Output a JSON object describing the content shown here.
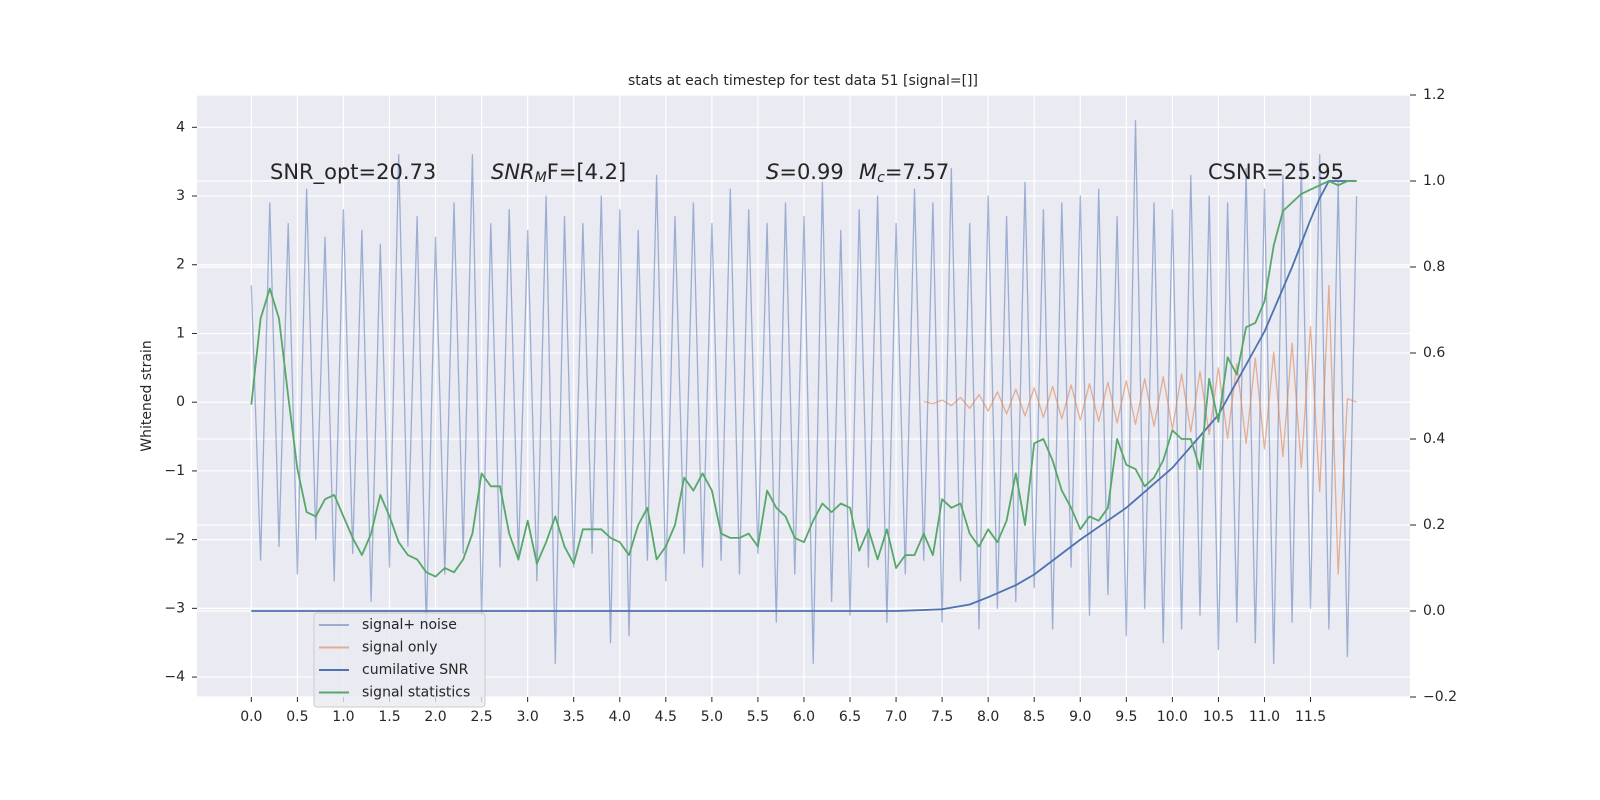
{
  "chart_data": {
    "type": "line",
    "title": "stats at each timestep for test data 51 [signal=[]]",
    "y_label": "Whitened strain",
    "grid": true,
    "legend_position": "lower left",
    "xlim": [
      -0.59,
      12.58
    ],
    "ylim": [
      -4.29,
      4.47
    ],
    "y2lim": [
      -0.2,
      1.2
    ],
    "xticks": [
      {
        "value": 0,
        "label": "0.0"
      },
      0.5,
      {
        "value": 1,
        "label": "1.0"
      },
      1.5,
      {
        "value": 2,
        "label": "2.0"
      },
      2.5,
      {
        "value": 3,
        "label": "3.0"
      },
      3.5,
      {
        "value": 4,
        "label": "4.0"
      },
      4.5,
      {
        "value": 5,
        "label": "5.0"
      },
      5.5,
      {
        "value": 6,
        "label": "6.0"
      },
      6.5,
      {
        "value": 7,
        "label": "7.0"
      },
      7.5,
      {
        "value": 8,
        "label": "8.0"
      },
      8.5,
      {
        "value": 9,
        "label": "9.0"
      },
      9.5,
      {
        "value": 10,
        "label": "10.0"
      },
      10.5,
      {
        "value": 11,
        "label": "11.0"
      },
      11.5
    ],
    "yticks": [
      {
        "value": -4,
        "label": "−4"
      },
      {
        "value": -3,
        "label": "−3"
      },
      {
        "value": -2,
        "label": "−2"
      },
      {
        "value": -1,
        "label": "−1"
      },
      0,
      1,
      2,
      3,
      4
    ],
    "y2ticks": [
      {
        "value": -0.2,
        "label": "−0.2"
      },
      {
        "value": 0,
        "label": "0.0"
      },
      0.2,
      0.4,
      0.6,
      0.8,
      {
        "value": 1,
        "label": "1.0"
      },
      1.2
    ],
    "annotations": [
      {
        "text": "SNR_opt=20.73"
      },
      {
        "text": "SNR",
        "sub": "M",
        "rest": "F=[4.2]"
      },
      {
        "text": "S",
        "rest": "=0.99"
      },
      {
        "text": "M",
        "sub": "c",
        "rest": "=7.57"
      },
      {
        "text": "CSNR=25.95"
      }
    ],
    "x": [
      0,
      0.1,
      0.2,
      0.3,
      0.4,
      0.5,
      0.6,
      0.7,
      0.8,
      0.9,
      1,
      1.1,
      1.2,
      1.3,
      1.4,
      1.5,
      1.6,
      1.7,
      1.8,
      1.9,
      2,
      2.1,
      2.2,
      2.3,
      2.4,
      2.5,
      2.6,
      2.7,
      2.8,
      2.9,
      3,
      3.1,
      3.2,
      3.3,
      3.4,
      3.5,
      3.6,
      3.7,
      3.8,
      3.9,
      4,
      4.1,
      4.2,
      4.3,
      4.4,
      4.5,
      4.6,
      4.7,
      4.8,
      4.9,
      5,
      5.1,
      5.2,
      5.3,
      5.4,
      5.5,
      5.6,
      5.7,
      5.8,
      5.9,
      6,
      6.1,
      6.2,
      6.3,
      6.4,
      6.5,
      6.6,
      6.7,
      6.8,
      6.9,
      7,
      7.1,
      7.2,
      7.3,
      7.4,
      7.5,
      7.6,
      7.7,
      7.8,
      7.9,
      8,
      8.1,
      8.2,
      8.3,
      8.4,
      8.5,
      8.6,
      8.7,
      8.8,
      8.9,
      9,
      9.1,
      9.2,
      9.3,
      9.4,
      9.5,
      9.6,
      9.7,
      9.8,
      9.9,
      10,
      10.1,
      10.2,
      10.3,
      10.4,
      10.5,
      10.6,
      10.7,
      10.8,
      10.9,
      11,
      11.1,
      11.2,
      11.3,
      11.4,
      11.5,
      11.6,
      11.7,
      11.8,
      11.9,
      12
    ],
    "series": [
      {
        "name": "signal+ noise",
        "color": "#4c72b0",
        "alpha": 0.5,
        "values": [
          1.7,
          -2.3,
          2.9,
          -2.1,
          2.6,
          -2.5,
          3.1,
          -2.0,
          2.4,
          -2.6,
          2.8,
          -2.2,
          2.5,
          -2.9,
          2.3,
          -2.4,
          3.6,
          -2.1,
          2.7,
          -3.3,
          2.4,
          -2.5,
          2.9,
          -2.2,
          3.6,
          -3.1,
          2.6,
          -2.4,
          2.8,
          -2.3,
          2.5,
          -2.6,
          3.0,
          -3.8,
          2.7,
          -2.4,
          2.6,
          -2.2,
          3.0,
          -3.5,
          2.8,
          -3.4,
          2.5,
          -2.3,
          3.3,
          -2.6,
          2.7,
          -2.2,
          2.9,
          -2.4,
          2.6,
          -2.3,
          3.1,
          -2.5,
          2.8,
          -2.2,
          2.6,
          -3.2,
          2.9,
          -2.5,
          2.7,
          -3.8,
          3.2,
          -2.9,
          2.5,
          -3.1,
          2.8,
          -2.4,
          3.0,
          -3.2,
          2.6,
          -2.5,
          3.1,
          -2.3,
          2.9,
          -3.2,
          3.4,
          -2.6,
          2.6,
          -3.3,
          3.0,
          -3.0,
          2.7,
          -2.9,
          3.2,
          -2.7,
          2.8,
          -3.3,
          2.9,
          -2.4,
          3.0,
          -3.1,
          3.1,
          -2.8,
          2.7,
          -3.4,
          4.1,
          -3.0,
          2.9,
          -3.5,
          2.8,
          -3.3,
          3.3,
          -3.1,
          3.0,
          -3.6,
          2.9,
          -3.2,
          3.4,
          -3.5,
          3.1,
          -3.8,
          3.3,
          -3.2,
          3.5,
          -3.0,
          3.6,
          -3.3,
          3.2,
          -3.7,
          3.0
        ]
      },
      {
        "name": "signal only",
        "color": "#dd8452",
        "alpha": 0.6,
        "x": [
          7.3,
          7.4,
          7.5,
          7.6,
          7.7,
          7.8,
          7.9,
          8,
          8.1,
          8.2,
          8.3,
          8.4,
          8.5,
          8.6,
          8.7,
          8.8,
          8.9,
          9,
          9.1,
          9.2,
          9.3,
          9.4,
          9.5,
          9.6,
          9.7,
          9.8,
          9.9,
          10,
          10.1,
          10.2,
          10.3,
          10.4,
          10.5,
          10.6,
          10.7,
          10.8,
          10.9,
          11,
          11.1,
          11.2,
          11.3,
          11.4,
          11.5,
          11.6,
          11.7,
          11.8,
          11.9,
          12
        ],
        "values": [
          0.01,
          -0.02,
          0.03,
          -0.05,
          0.07,
          -0.09,
          0.11,
          -0.13,
          0.15,
          -0.17,
          0.19,
          -0.2,
          0.21,
          -0.22,
          0.23,
          -0.24,
          0.25,
          -0.26,
          0.27,
          -0.28,
          0.29,
          -0.3,
          0.31,
          -0.32,
          0.34,
          -0.35,
          0.37,
          -0.39,
          0.41,
          -0.43,
          0.45,
          -0.47,
          0.5,
          -0.53,
          0.56,
          -0.6,
          0.64,
          -0.68,
          0.73,
          -0.79,
          0.86,
          -0.95,
          1.1,
          -1.3,
          1.7,
          -2.5,
          0.05,
          0
        ]
      },
      {
        "name": "cumilative SNR",
        "color": "#4c72b0",
        "axis": "y2",
        "x": [
          0,
          7,
          7.5,
          7.8,
          8,
          8.3,
          8.5,
          9,
          9.5,
          10,
          10.5,
          11,
          11.3,
          11.5,
          11.6,
          11.7,
          12
        ],
        "values": [
          0,
          0,
          0.004,
          0.015,
          0.032,
          0.06,
          0.085,
          0.166,
          0.24,
          0.333,
          0.456,
          0.65,
          0.8,
          0.91,
          0.96,
          1.0,
          1.0
        ]
      },
      {
        "name": "signal statistics",
        "color": "#55a868",
        "axis": "y2",
        "values": [
          0.48,
          0.68,
          0.75,
          0.68,
          0.5,
          0.33,
          0.23,
          0.22,
          0.26,
          0.27,
          0.22,
          0.17,
          0.13,
          0.18,
          0.27,
          0.22,
          0.16,
          0.13,
          0.12,
          0.09,
          0.08,
          0.1,
          0.09,
          0.12,
          0.18,
          0.32,
          0.29,
          0.29,
          0.18,
          0.12,
          0.21,
          0.11,
          0.16,
          0.22,
          0.15,
          0.11,
          0.19,
          0.19,
          0.19,
          0.17,
          0.16,
          0.13,
          0.2,
          0.24,
          0.12,
          0.15,
          0.2,
          0.31,
          0.28,
          0.32,
          0.28,
          0.18,
          0.17,
          0.17,
          0.18,
          0.15,
          0.28,
          0.24,
          0.22,
          0.17,
          0.16,
          0.21,
          0.25,
          0.23,
          0.25,
          0.24,
          0.14,
          0.19,
          0.12,
          0.19,
          0.1,
          0.13,
          0.13,
          0.18,
          0.13,
          0.26,
          0.24,
          0.25,
          0.18,
          0.15,
          0.19,
          0.16,
          0.21,
          0.32,
          0.2,
          0.39,
          0.4,
          0.35,
          0.28,
          0.24,
          0.19,
          0.22,
          0.21,
          0.24,
          0.4,
          0.34,
          0.33,
          0.29,
          0.31,
          0.35,
          0.42,
          0.4,
          0.4,
          0.33,
          0.54,
          0.44,
          0.59,
          0.55,
          0.66,
          0.67,
          0.72,
          0.85,
          0.93,
          0.95,
          0.97,
          0.98,
          0.99,
          1.0,
          0.99,
          1.0,
          1.0
        ]
      }
    ]
  }
}
